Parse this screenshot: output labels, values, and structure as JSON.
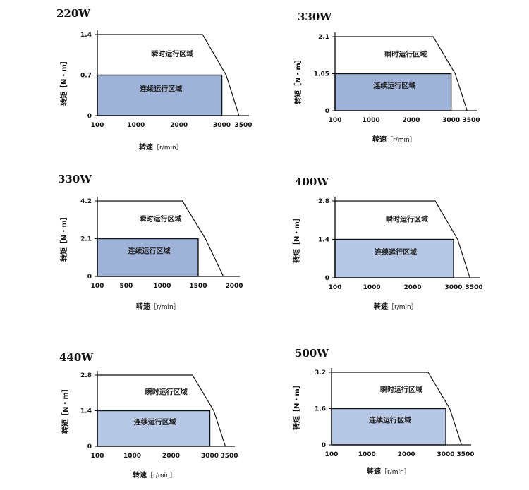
{
  "common": {
    "y_axis_label": "转矩",
    "y_axis_unit": "［N・m］",
    "x_axis_label": "转速",
    "x_axis_unit": "［r/min］",
    "instant_region": "瞬时运行区域",
    "continuous_region": "连续运行区域",
    "continuous_fill": "#9fb3d9",
    "continuous_fill_light": "#b7c7e6"
  },
  "chart_data": [
    {
      "type": "area",
      "title": "220W",
      "xlabel": "转速［r/min］",
      "ylabel": "转矩［N・m］",
      "x_ticks": [
        100,
        1000,
        2000,
        3000,
        3500
      ],
      "y_ticks": [
        "0",
        "0.7",
        "1.4"
      ],
      "y_tick_values": [
        0,
        0.7,
        1.4
      ],
      "xlim": [
        100,
        3500
      ],
      "ylim": [
        0,
        1.4
      ],
      "instantaneous": {
        "name": "瞬时运行区域",
        "points": [
          [
            100,
            1.4
          ],
          [
            2550,
            1.4
          ],
          [
            3100,
            0.7
          ],
          [
            3400,
            0
          ]
        ]
      },
      "continuous": {
        "name": "连续运行区域",
        "torque": 0.7,
        "x_from": 100,
        "x_to": 3000
      },
      "fill": "#9fb3d9"
    },
    {
      "type": "area",
      "title": "330W",
      "xlabel": "转速［r/min］",
      "ylabel": "转矩［N・m］",
      "x_ticks": [
        100,
        1000,
        2000,
        3000,
        3500
      ],
      "y_ticks": [
        "0",
        "1.05",
        "2.1"
      ],
      "y_tick_values": [
        0,
        1.05,
        2.1
      ],
      "xlim": [
        100,
        3500
      ],
      "ylim": [
        0,
        2.1
      ],
      "instantaneous": {
        "name": "瞬时运行区域",
        "points": [
          [
            100,
            2.1
          ],
          [
            2550,
            2.1
          ],
          [
            3100,
            1.05
          ],
          [
            3400,
            0
          ]
        ]
      },
      "continuous": {
        "name": "连续运行区域",
        "torque": 1.05,
        "x_from": 100,
        "x_to": 3000
      },
      "fill": "#9fb3d9"
    },
    {
      "type": "area",
      "title": "330W",
      "xlabel": "转速［r/min］",
      "ylabel": "转矩［N・m］",
      "x_ticks": [
        100,
        500,
        1000,
        1500,
        2000
      ],
      "y_ticks": [
        "0",
        "2.1",
        "4.2"
      ],
      "y_tick_values": [
        0,
        2.1,
        4.2
      ],
      "xlim": [
        100,
        2000
      ],
      "ylim": [
        0,
        4.2
      ],
      "instantaneous": {
        "name": "瞬时运行区域",
        "points": [
          [
            100,
            4.2
          ],
          [
            1280,
            4.2
          ],
          [
            1600,
            2.1
          ],
          [
            1850,
            0
          ]
        ]
      },
      "continuous": {
        "name": "连续运行区域",
        "torque": 2.1,
        "x_from": 100,
        "x_to": 1500
      },
      "fill": "#9fb3d9"
    },
    {
      "type": "area",
      "title": "400W",
      "xlabel": "转速［r/min］",
      "ylabel": "转矩［N・m］",
      "x_ticks": [
        100,
        1000,
        2000,
        3000,
        3500
      ],
      "y_ticks": [
        "0",
        "1.4",
        "2.8"
      ],
      "y_tick_values": [
        0,
        1.4,
        2.8
      ],
      "xlim": [
        100,
        3500
      ],
      "ylim": [
        0,
        2.8
      ],
      "instantaneous": {
        "name": "瞬时运行区域",
        "points": [
          [
            100,
            2.8
          ],
          [
            2550,
            2.8
          ],
          [
            3100,
            1.4
          ],
          [
            3400,
            0
          ]
        ]
      },
      "continuous": {
        "name": "连续运行区域",
        "torque": 1.4,
        "x_from": 100,
        "x_to": 3000
      },
      "fill": "#b7c7e6"
    },
    {
      "type": "area",
      "title": "440W",
      "xlabel": "转速［r/min］",
      "ylabel": "转矩［N・m］",
      "x_ticks": [
        100,
        1000,
        2000,
        3000,
        3500
      ],
      "y_ticks": [
        "0",
        "1.4",
        "2.8"
      ],
      "y_tick_values": [
        0,
        1.4,
        2.8
      ],
      "xlim": [
        100,
        3500
      ],
      "ylim": [
        0,
        2.8
      ],
      "instantaneous": {
        "name": "瞬时运行区域",
        "points": [
          [
            100,
            2.8
          ],
          [
            2550,
            2.8
          ],
          [
            3100,
            1.4
          ],
          [
            3400,
            0
          ]
        ]
      },
      "continuous": {
        "name": "连续运行区域",
        "torque": 1.4,
        "x_from": 100,
        "x_to": 3000
      },
      "fill": "#b7c7e6"
    },
    {
      "type": "area",
      "title": "500W",
      "xlabel": "转速［r/min］",
      "ylabel": "转矩［N・m］",
      "x_ticks": [
        100,
        1000,
        2000,
        3000,
        3500
      ],
      "y_ticks": [
        "0",
        "1.6",
        "3.2"
      ],
      "y_tick_values": [
        0,
        1.6,
        3.2
      ],
      "xlim": [
        100,
        3500
      ],
      "ylim": [
        0,
        3.2
      ],
      "instantaneous": {
        "name": "瞬时运行区域",
        "points": [
          [
            100,
            3.2
          ],
          [
            2550,
            3.2
          ],
          [
            3100,
            1.6
          ],
          [
            3400,
            0
          ]
        ]
      },
      "continuous": {
        "name": "连续运行区域",
        "torque": 1.6,
        "x_from": 100,
        "x_to": 3000
      },
      "fill": "#b7c7e6"
    }
  ]
}
